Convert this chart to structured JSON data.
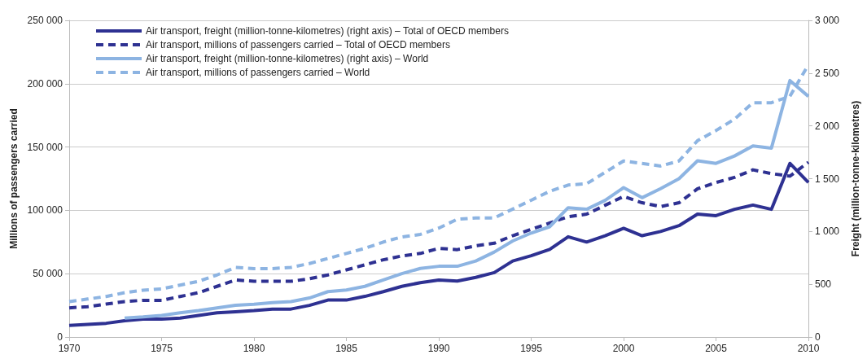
{
  "chart_data": {
    "type": "line",
    "ylabel": "Millions of passengers carried",
    "y2label": "Freight (million-tonne-kilometres)",
    "x": [
      1970,
      1971,
      1972,
      1973,
      1974,
      1975,
      1976,
      1977,
      1978,
      1979,
      1980,
      1981,
      1982,
      1983,
      1984,
      1985,
      1986,
      1987,
      1988,
      1989,
      1990,
      1991,
      1992,
      1993,
      1994,
      1995,
      1996,
      1997,
      1998,
      1999,
      2000,
      2001,
      2002,
      2003,
      2004,
      2005,
      2006,
      2007,
      2008,
      2009,
      2010
    ],
    "xlim": [
      1970,
      2010
    ],
    "xticks": [
      1970,
      1975,
      1980,
      1985,
      1990,
      1995,
      2000,
      2005,
      2010
    ],
    "ylim": [
      0,
      250000
    ],
    "yticks": [
      {
        "value": 0,
        "label": "0"
      },
      {
        "value": 50000,
        "label": "50 000"
      },
      {
        "value": 100000,
        "label": "100 000"
      },
      {
        "value": 150000,
        "label": "150 000"
      },
      {
        "value": 200000,
        "label": "200 000"
      },
      {
        "value": 250000,
        "label": "250 000"
      }
    ],
    "y2lim": [
      0,
      3000
    ],
    "y2ticks": [
      {
        "value": 0,
        "label": "0"
      },
      {
        "value": 500,
        "label": "500"
      },
      {
        "value": 1000,
        "label": "1 000"
      },
      {
        "value": 1500,
        "label": "1 500"
      },
      {
        "value": 2000,
        "label": "2 000"
      },
      {
        "value": 2500,
        "label": "2 500"
      },
      {
        "value": 3000,
        "label": "3 000"
      }
    ],
    "grid": "y",
    "legend": "top left",
    "marker": "none",
    "series": [
      {
        "name": "Air transport, freight (million-tonne-kilometres) (right axis) – Total of OECD members",
        "color": "#2e3192",
        "axis": "y2",
        "line_style": "solid",
        "values": [
          110,
          120,
          130,
          155,
          170,
          170,
          180,
          205,
          230,
          240,
          250,
          265,
          265,
          300,
          350,
          350,
          385,
          430,
          480,
          515,
          540,
          530,
          565,
          610,
          720,
          770,
          830,
          950,
          900,
          960,
          1030,
          960,
          1000,
          1055,
          1165,
          1150,
          1210,
          1250,
          1210,
          1645,
          1465
        ]
      },
      {
        "name": "Air transport, millions of passengers carried – Total of OECD members",
        "color": "#2e3192",
        "line_style": "dashed",
        "values": [
          23000,
          24000,
          26000,
          28000,
          29000,
          29000,
          32000,
          35000,
          40000,
          45000,
          44000,
          44000,
          44000,
          46000,
          49000,
          53000,
          57000,
          61000,
          64000,
          66000,
          70000,
          69000,
          72000,
          74000,
          80000,
          85000,
          90000,
          95000,
          97000,
          104000,
          111000,
          106000,
          103000,
          106000,
          117000,
          122000,
          126000,
          132000,
          129000,
          127000,
          138000
        ]
      },
      {
        "name": "Air transport, freight (million-tonne-kilometres) (right axis) – World",
        "color": "#8db4e2",
        "axis": "y2",
        "line_style": "solid",
        "values": [
          null,
          null,
          null,
          180,
          190,
          205,
          230,
          250,
          275,
          300,
          310,
          325,
          335,
          370,
          430,
          445,
          480,
          540,
          600,
          650,
          670,
          670,
          720,
          805,
          910,
          985,
          1045,
          1225,
          1210,
          1295,
          1415,
          1320,
          1405,
          1500,
          1670,
          1645,
          1715,
          1810,
          1790,
          2430,
          2280
        ]
      },
      {
        "name": "Air transport, millions of passengers carried – World",
        "color": "#8db4e2",
        "line_style": "dashed",
        "values": [
          28000,
          30000,
          32000,
          35000,
          37000,
          38000,
          41000,
          44000,
          49000,
          55000,
          54000,
          54000,
          55000,
          58000,
          62000,
          66000,
          70000,
          75000,
          79000,
          81000,
          86000,
          93000,
          94000,
          94000,
          101000,
          108000,
          115000,
          120000,
          121000,
          130000,
          139000,
          137000,
          135000,
          139000,
          155000,
          163000,
          172000,
          185000,
          185000,
          190000,
          215000
        ]
      }
    ]
  }
}
